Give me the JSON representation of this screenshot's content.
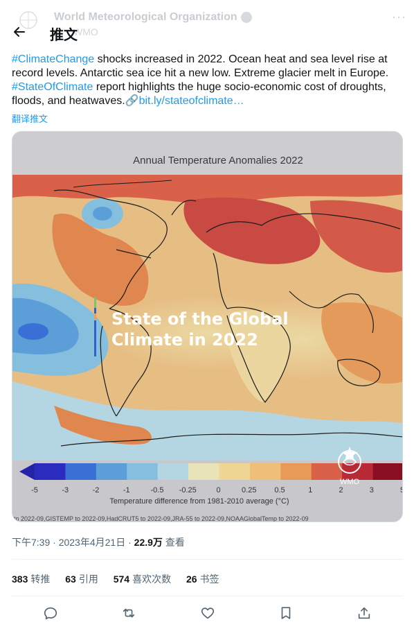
{
  "header": {
    "account_name": "World Meteorological Organization",
    "account_handle": "WMO",
    "title": "推文"
  },
  "tweet": {
    "hashtag1": "#ClimateChange",
    "text1": " shocks increased in 2022. Ocean heat and sea level rise at record levels. Antarctic sea ice hit a new low. Extreme glacier melt in Europe. ",
    "hashtag2": "#StateOfClimate",
    "text2": " report highlights the huge socio-economic cost of droughts, floods, and heatwaves.",
    "link_emoji": "🔗",
    "link": "bit.ly/stateofclimate…",
    "translate": "翻译推文"
  },
  "media": {
    "chart_title": "Annual Temperature Anomalies 2022",
    "overlay_line1": "State of the Global",
    "overlay_line2": "Climate in 2022",
    "logo_text": "WMO",
    "colorbar_ticks": [
      "-5",
      "-3",
      "-2",
      "-1",
      "-0.5",
      "-0.25",
      "0",
      "0.25",
      "0.5",
      "1",
      "2",
      "3",
      "5"
    ],
    "colorbar_colors": [
      "#2b2bbf",
      "#3a6fd6",
      "#5c9ed8",
      "#86bfde",
      "#b4d6e2",
      "#e9e4b8",
      "#f0d694",
      "#efbf78",
      "#e89a58",
      "#d9614a",
      "#b82a35",
      "#8b0f23"
    ],
    "colorbar_label": "Temperature difference from 1981-2010 average (°C)",
    "source": "to 2022-09,GISTEMP to 2022-09,HadCRUT5 to 2022-09,JRA-55 to 2022-09,NOAAGlobalTemp to 2022-09"
  },
  "meta": {
    "time": "下午7:39",
    "sep1": " · ",
    "date": "2023年4月21日",
    "sep2": " · ",
    "views_count": "22.9万",
    "views_label": " 查看"
  },
  "stats": {
    "retweets_count": "383",
    "retweets_label": "转推",
    "quotes_count": "63",
    "quotes_label": "引用",
    "likes_count": "574",
    "likes_label": "喜欢次数",
    "bookmarks_count": "26",
    "bookmarks_label": "书签"
  },
  "icons": {
    "back": "arrow-left-icon",
    "reply": "reply-icon",
    "retweet": "retweet-icon",
    "like": "heart-icon",
    "bookmark": "bookmark-icon",
    "share": "share-icon"
  }
}
